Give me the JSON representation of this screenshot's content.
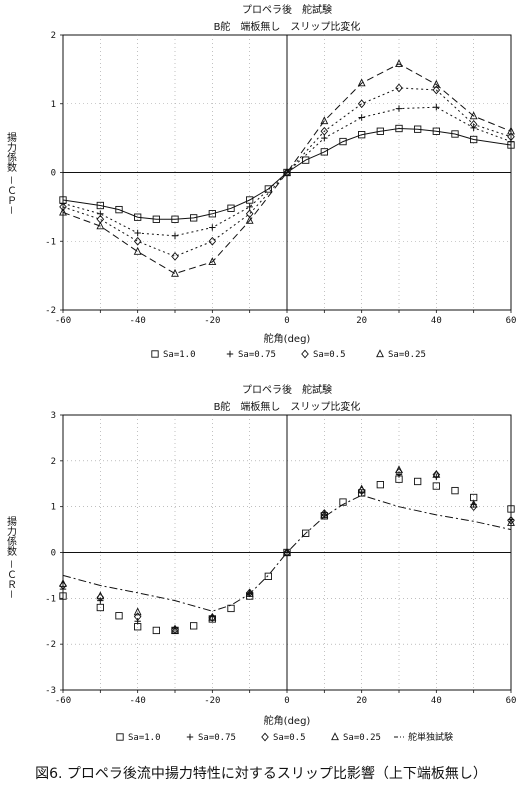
{
  "caption": "図6. プロペラ後流中揚力特性に対するスリップ比影響（上下端板無し）",
  "chart_data": [
    {
      "type": "line",
      "title": "プロペラ後　舵試験",
      "subtitle": "B舵　端板無し　スリップ比変化",
      "xlabel": "舵角(deg)",
      "ylabel": "揚力係数 －ＣＰ－",
      "xlim": [
        -60,
        60
      ],
      "ylim": [
        -2,
        2
      ],
      "xticks": [
        "-60",
        "-40",
        "-20",
        "0",
        "20",
        "40",
        "60"
      ],
      "yticks": [
        "-2",
        "-1",
        "0",
        "1",
        "2"
      ],
      "grid": true,
      "legend_position": "bottom",
      "series": [
        {
          "name": "Sa=1.0",
          "marker": "square",
          "line": "solid",
          "x": [
            -60,
            -50,
            -45,
            -40,
            -35,
            -30,
            -25,
            -20,
            -15,
            -10,
            -5,
            0,
            5,
            10,
            15,
            20,
            25,
            30,
            35,
            40,
            45,
            50,
            60
          ],
          "y": [
            -0.4,
            -0.48,
            -0.54,
            -0.65,
            -0.68,
            -0.68,
            -0.66,
            -0.6,
            -0.52,
            -0.4,
            -0.24,
            0,
            0.18,
            0.3,
            0.45,
            0.55,
            0.6,
            0.64,
            0.63,
            0.6,
            0.56,
            0.48,
            0.4
          ]
        },
        {
          "name": "Sa=0.75",
          "marker": "plus",
          "line": "dotted",
          "x": [
            -60,
            -50,
            -40,
            -30,
            -20,
            -10,
            0,
            10,
            20,
            30,
            40,
            50,
            60
          ],
          "y": [
            -0.45,
            -0.6,
            -0.88,
            -0.92,
            -0.8,
            -0.5,
            0,
            0.5,
            0.8,
            0.93,
            0.95,
            0.65,
            0.45
          ]
        },
        {
          "name": "Sa=0.5",
          "marker": "diamond",
          "line": "dotted",
          "x": [
            -60,
            -50,
            -40,
            -30,
            -20,
            -10,
            0,
            10,
            20,
            30,
            40,
            50,
            60
          ],
          "y": [
            -0.5,
            -0.68,
            -1.0,
            -1.22,
            -1.0,
            -0.6,
            0,
            0.6,
            1.0,
            1.23,
            1.2,
            0.7,
            0.52
          ]
        },
        {
          "name": "Sa=0.25",
          "marker": "triangle",
          "line": "dashed",
          "x": [
            -60,
            -50,
            -40,
            -30,
            -20,
            -10,
            0,
            10,
            20,
            30,
            40,
            50,
            60
          ],
          "y": [
            -0.58,
            -0.78,
            -1.15,
            -1.47,
            -1.3,
            -0.7,
            0,
            0.75,
            1.3,
            1.58,
            1.28,
            0.82,
            0.6
          ]
        }
      ]
    },
    {
      "type": "scatter",
      "title": "プロペラ後　舵試験",
      "subtitle": "B舵　端板無し　スリップ比変化",
      "xlabel": "舵角(deg)",
      "ylabel": "揚力係数 －ＣＲ－",
      "xlim": [
        -60,
        60
      ],
      "ylim": [
        -3,
        3
      ],
      "xticks": [
        "-60",
        "-40",
        "-20",
        "0",
        "20",
        "40",
        "60"
      ],
      "yticks": [
        "-3",
        "-2",
        "-1",
        "0",
        "1",
        "2",
        "3"
      ],
      "grid": true,
      "legend_position": "bottom",
      "series": [
        {
          "name": "Sa=1.0",
          "marker": "square",
          "x": [
            -60,
            -50,
            -45,
            -40,
            -35,
            -30,
            -25,
            -20,
            -15,
            -10,
            -5,
            0,
            5,
            10,
            15,
            20,
            25,
            30,
            35,
            40,
            45,
            50,
            60
          ],
          "y": [
            -0.95,
            -1.2,
            -1.38,
            -1.62,
            -1.7,
            -1.7,
            -1.6,
            -1.45,
            -1.22,
            -0.95,
            -0.52,
            0,
            0.42,
            0.8,
            1.1,
            1.3,
            1.48,
            1.6,
            1.55,
            1.45,
            1.35,
            1.2,
            0.95
          ]
        },
        {
          "name": "Sa=0.75",
          "marker": "plus",
          "x": [
            -60,
            -50,
            -40,
            -30,
            -20,
            -10,
            0,
            10,
            20,
            30,
            40,
            50,
            60
          ],
          "y": [
            -0.8,
            -1.05,
            -1.5,
            -1.65,
            -1.4,
            -0.9,
            0,
            0.82,
            1.3,
            1.7,
            1.65,
            1.05,
            0.72
          ]
        },
        {
          "name": "Sa=0.5",
          "marker": "diamond",
          "x": [
            -60,
            -50,
            -40,
            -30,
            -20,
            -10,
            0,
            10,
            20,
            30,
            40,
            50,
            60
          ],
          "y": [
            -0.72,
            -0.98,
            -1.4,
            -1.68,
            -1.42,
            -0.88,
            0,
            0.85,
            1.35,
            1.75,
            1.7,
            1.0,
            0.7
          ]
        },
        {
          "name": "Sa=0.25",
          "marker": "triangle",
          "x": [
            -60,
            -50,
            -40,
            -30,
            -20,
            -10,
            0,
            10,
            20,
            30,
            40,
            50,
            60
          ],
          "y": [
            -0.68,
            -0.95,
            -1.3,
            -1.7,
            -1.42,
            -0.9,
            0,
            0.82,
            1.38,
            1.8,
            1.7,
            1.05,
            0.65
          ]
        },
        {
          "name": "舵単独試験",
          "marker": "none",
          "line": "dashdot",
          "x": [
            -60,
            -50,
            -40,
            -30,
            -20,
            -15,
            -10,
            -5,
            0,
            5,
            10,
            15,
            20,
            30,
            40,
            50,
            60
          ],
          "y": [
            -0.5,
            -0.72,
            -0.88,
            -1.05,
            -1.28,
            -1.15,
            -0.9,
            -0.5,
            0,
            0.42,
            0.78,
            1.05,
            1.25,
            1.0,
            0.82,
            0.68,
            0.5
          ]
        }
      ]
    }
  ]
}
